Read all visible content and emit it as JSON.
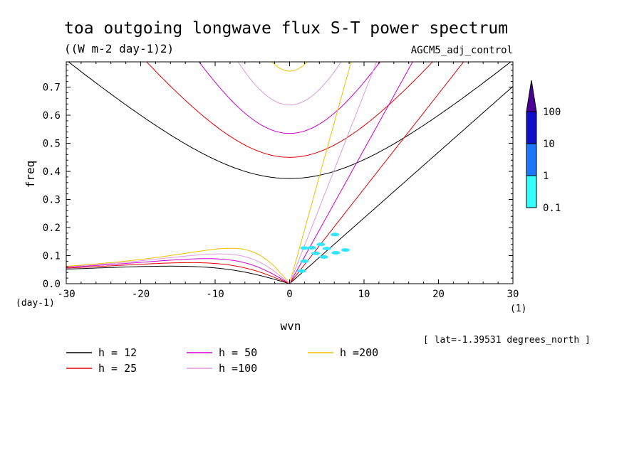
{
  "chart_data": {
    "type": "line",
    "title": "toa outgoing longwave flux S-T power spectrum",
    "subtitle": "((W m-2 day-1)2)",
    "dataset_label": "AGCM5_adj_control",
    "xlabel": "wvn",
    "ylabel": "freq",
    "x_unit": "(1)",
    "y_unit": "(day-1)",
    "xlim": [
      -30,
      30
    ],
    "ylim": [
      0,
      0.79
    ],
    "x_ticks": [
      "-30",
      "-20",
      "-10",
      "0",
      "10",
      "20",
      "30"
    ],
    "y_ticks": [
      "0.0",
      "0.1",
      "0.2",
      "0.3",
      "0.4",
      "0.5",
      "0.6",
      "0.7"
    ],
    "x_tick_values": [
      -30,
      -20,
      -10,
      0,
      10,
      20,
      30
    ],
    "y_tick_values": [
      0,
      0.1,
      0.2,
      0.3,
      0.4,
      0.5,
      0.6,
      0.7
    ],
    "footnote": "[ lat=-1.39531 degrees_north ]",
    "legend_position": "bottom-left",
    "series": [
      {
        "name": "h = 12",
        "h": 12,
        "color": "#000000"
      },
      {
        "name": "h = 25",
        "h": 25,
        "color": "#e00000"
      },
      {
        "name": "h = 50",
        "h": 50,
        "color": "#cc00cc"
      },
      {
        "name": "h =100",
        "h": 100,
        "color": "#dd99dd"
      },
      {
        "name": "h =200",
        "h": 200,
        "color": "#f0c000"
      }
    ],
    "colorbar": {
      "labels": [
        "100",
        "10",
        "1",
        "0.1"
      ],
      "colors": [
        "#4b0096",
        "#1010c8",
        "#1e78ff",
        "#33ffff"
      ]
    },
    "power_blobs": [
      {
        "x": 2,
        "y": 0.127,
        "level": "0.1"
      },
      {
        "x": 3,
        "y": 0.128,
        "level": "0.1"
      },
      {
        "x": 3.5,
        "y": 0.108,
        "level": "0.1"
      },
      {
        "x": 4.2,
        "y": 0.14,
        "level": "0.1"
      },
      {
        "x": 5,
        "y": 0.125,
        "level": "0.1"
      },
      {
        "x": 2,
        "y": 0.08,
        "level": "0.1"
      },
      {
        "x": 6.1,
        "y": 0.175,
        "level": "0.1"
      },
      {
        "x": 4.6,
        "y": 0.095,
        "level": "0.1"
      },
      {
        "x": 6.2,
        "y": 0.11,
        "level": "0.1"
      },
      {
        "x": 7.5,
        "y": 0.12,
        "level": "0.1"
      },
      {
        "x": 1.6,
        "y": 0.045,
        "level": "0.1"
      }
    ]
  }
}
